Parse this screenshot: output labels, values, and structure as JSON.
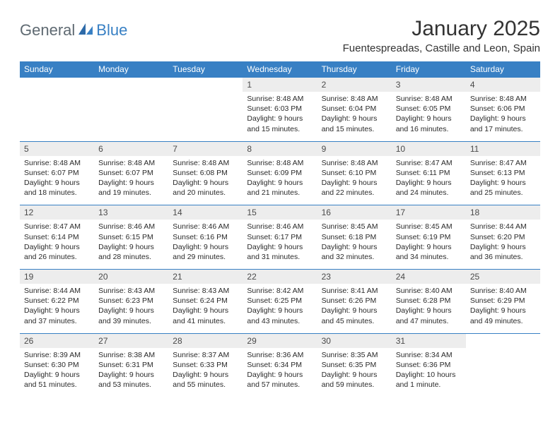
{
  "logo": {
    "text1": "General",
    "text2": "Blue"
  },
  "title": "January 2025",
  "location": "Fuentespreadas, Castille and Leon, Spain",
  "colors": {
    "header_bg": "#3880c4",
    "header_text": "#ffffff",
    "daynum_bg": "#ededed",
    "daynum_text": "#4a4a4a",
    "cell_border": "#3880c4",
    "body_text": "#2a2a2a",
    "logo_gray": "#5f6a72",
    "logo_blue": "#3880c4",
    "title_color": "#333333"
  },
  "weekdays": [
    "Sunday",
    "Monday",
    "Tuesday",
    "Wednesday",
    "Thursday",
    "Friday",
    "Saturday"
  ],
  "first_weekday_index": 3,
  "days": [
    {
      "n": "1",
      "sr": "Sunrise: 8:48 AM",
      "ss": "Sunset: 6:03 PM",
      "d1": "Daylight: 9 hours",
      "d2": "and 15 minutes."
    },
    {
      "n": "2",
      "sr": "Sunrise: 8:48 AM",
      "ss": "Sunset: 6:04 PM",
      "d1": "Daylight: 9 hours",
      "d2": "and 15 minutes."
    },
    {
      "n": "3",
      "sr": "Sunrise: 8:48 AM",
      "ss": "Sunset: 6:05 PM",
      "d1": "Daylight: 9 hours",
      "d2": "and 16 minutes."
    },
    {
      "n": "4",
      "sr": "Sunrise: 8:48 AM",
      "ss": "Sunset: 6:06 PM",
      "d1": "Daylight: 9 hours",
      "d2": "and 17 minutes."
    },
    {
      "n": "5",
      "sr": "Sunrise: 8:48 AM",
      "ss": "Sunset: 6:07 PM",
      "d1": "Daylight: 9 hours",
      "d2": "and 18 minutes."
    },
    {
      "n": "6",
      "sr": "Sunrise: 8:48 AM",
      "ss": "Sunset: 6:07 PM",
      "d1": "Daylight: 9 hours",
      "d2": "and 19 minutes."
    },
    {
      "n": "7",
      "sr": "Sunrise: 8:48 AM",
      "ss": "Sunset: 6:08 PM",
      "d1": "Daylight: 9 hours",
      "d2": "and 20 minutes."
    },
    {
      "n": "8",
      "sr": "Sunrise: 8:48 AM",
      "ss": "Sunset: 6:09 PM",
      "d1": "Daylight: 9 hours",
      "d2": "and 21 minutes."
    },
    {
      "n": "9",
      "sr": "Sunrise: 8:48 AM",
      "ss": "Sunset: 6:10 PM",
      "d1": "Daylight: 9 hours",
      "d2": "and 22 minutes."
    },
    {
      "n": "10",
      "sr": "Sunrise: 8:47 AM",
      "ss": "Sunset: 6:11 PM",
      "d1": "Daylight: 9 hours",
      "d2": "and 24 minutes."
    },
    {
      "n": "11",
      "sr": "Sunrise: 8:47 AM",
      "ss": "Sunset: 6:13 PM",
      "d1": "Daylight: 9 hours",
      "d2": "and 25 minutes."
    },
    {
      "n": "12",
      "sr": "Sunrise: 8:47 AM",
      "ss": "Sunset: 6:14 PM",
      "d1": "Daylight: 9 hours",
      "d2": "and 26 minutes."
    },
    {
      "n": "13",
      "sr": "Sunrise: 8:46 AM",
      "ss": "Sunset: 6:15 PM",
      "d1": "Daylight: 9 hours",
      "d2": "and 28 minutes."
    },
    {
      "n": "14",
      "sr": "Sunrise: 8:46 AM",
      "ss": "Sunset: 6:16 PM",
      "d1": "Daylight: 9 hours",
      "d2": "and 29 minutes."
    },
    {
      "n": "15",
      "sr": "Sunrise: 8:46 AM",
      "ss": "Sunset: 6:17 PM",
      "d1": "Daylight: 9 hours",
      "d2": "and 31 minutes."
    },
    {
      "n": "16",
      "sr": "Sunrise: 8:45 AM",
      "ss": "Sunset: 6:18 PM",
      "d1": "Daylight: 9 hours",
      "d2": "and 32 minutes."
    },
    {
      "n": "17",
      "sr": "Sunrise: 8:45 AM",
      "ss": "Sunset: 6:19 PM",
      "d1": "Daylight: 9 hours",
      "d2": "and 34 minutes."
    },
    {
      "n": "18",
      "sr": "Sunrise: 8:44 AM",
      "ss": "Sunset: 6:20 PM",
      "d1": "Daylight: 9 hours",
      "d2": "and 36 minutes."
    },
    {
      "n": "19",
      "sr": "Sunrise: 8:44 AM",
      "ss": "Sunset: 6:22 PM",
      "d1": "Daylight: 9 hours",
      "d2": "and 37 minutes."
    },
    {
      "n": "20",
      "sr": "Sunrise: 8:43 AM",
      "ss": "Sunset: 6:23 PM",
      "d1": "Daylight: 9 hours",
      "d2": "and 39 minutes."
    },
    {
      "n": "21",
      "sr": "Sunrise: 8:43 AM",
      "ss": "Sunset: 6:24 PM",
      "d1": "Daylight: 9 hours",
      "d2": "and 41 minutes."
    },
    {
      "n": "22",
      "sr": "Sunrise: 8:42 AM",
      "ss": "Sunset: 6:25 PM",
      "d1": "Daylight: 9 hours",
      "d2": "and 43 minutes."
    },
    {
      "n": "23",
      "sr": "Sunrise: 8:41 AM",
      "ss": "Sunset: 6:26 PM",
      "d1": "Daylight: 9 hours",
      "d2": "and 45 minutes."
    },
    {
      "n": "24",
      "sr": "Sunrise: 8:40 AM",
      "ss": "Sunset: 6:28 PM",
      "d1": "Daylight: 9 hours",
      "d2": "and 47 minutes."
    },
    {
      "n": "25",
      "sr": "Sunrise: 8:40 AM",
      "ss": "Sunset: 6:29 PM",
      "d1": "Daylight: 9 hours",
      "d2": "and 49 minutes."
    },
    {
      "n": "26",
      "sr": "Sunrise: 8:39 AM",
      "ss": "Sunset: 6:30 PM",
      "d1": "Daylight: 9 hours",
      "d2": "and 51 minutes."
    },
    {
      "n": "27",
      "sr": "Sunrise: 8:38 AM",
      "ss": "Sunset: 6:31 PM",
      "d1": "Daylight: 9 hours",
      "d2": "and 53 minutes."
    },
    {
      "n": "28",
      "sr": "Sunrise: 8:37 AM",
      "ss": "Sunset: 6:33 PM",
      "d1": "Daylight: 9 hours",
      "d2": "and 55 minutes."
    },
    {
      "n": "29",
      "sr": "Sunrise: 8:36 AM",
      "ss": "Sunset: 6:34 PM",
      "d1": "Daylight: 9 hours",
      "d2": "and 57 minutes."
    },
    {
      "n": "30",
      "sr": "Sunrise: 8:35 AM",
      "ss": "Sunset: 6:35 PM",
      "d1": "Daylight: 9 hours",
      "d2": "and 59 minutes."
    },
    {
      "n": "31",
      "sr": "Sunrise: 8:34 AM",
      "ss": "Sunset: 6:36 PM",
      "d1": "Daylight: 10 hours",
      "d2": "and 1 minute."
    }
  ]
}
